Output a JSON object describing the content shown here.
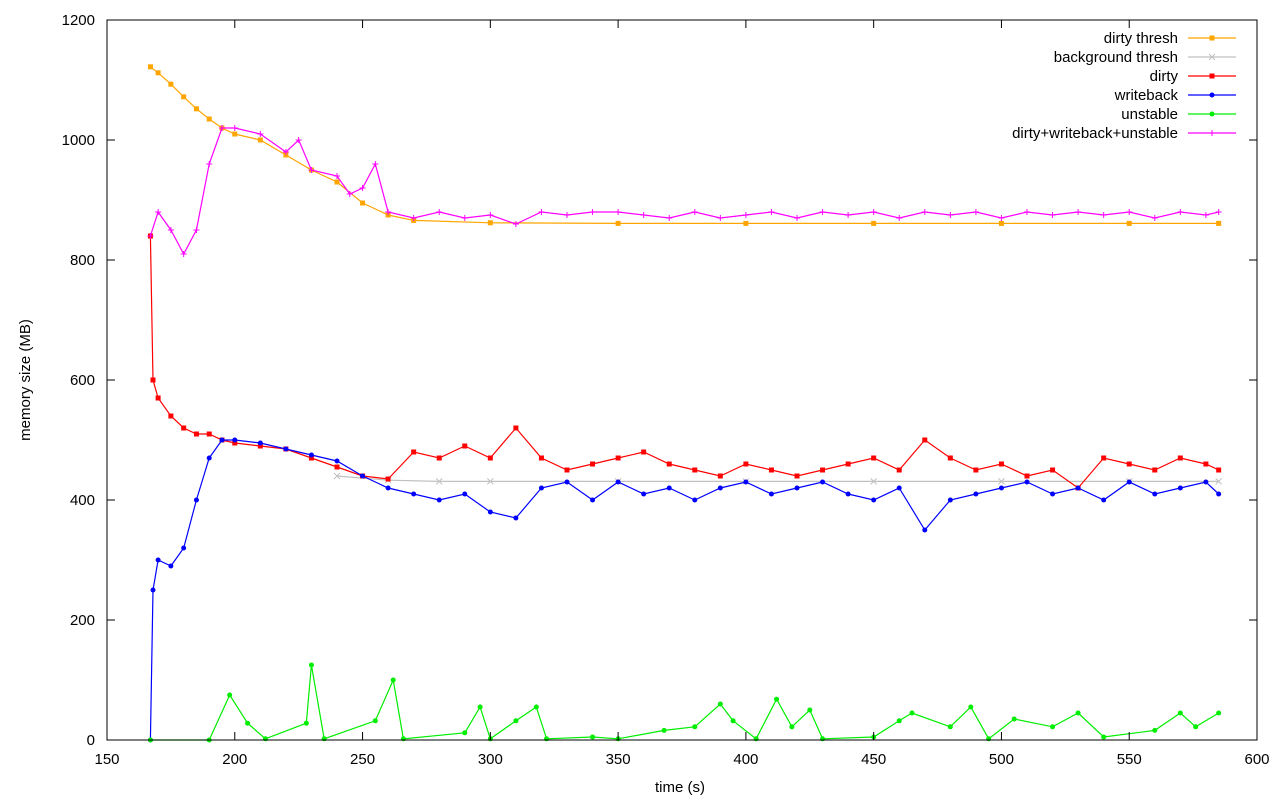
{
  "chart_data": {
    "type": "line",
    "title": "",
    "xlabel": "time (s)",
    "ylabel": "memory size (MB)",
    "xlim": [
      150,
      600
    ],
    "ylim": [
      0,
      1200
    ],
    "xticks": [
      150,
      200,
      250,
      300,
      350,
      400,
      450,
      500,
      550,
      600
    ],
    "yticks": [
      0,
      200,
      400,
      600,
      800,
      1000,
      1200
    ],
    "grid": false,
    "legend_position": "top-right",
    "series": [
      {
        "name": "dirty thresh",
        "color": "#ffa500",
        "marker": "square",
        "points": [
          [
            167,
            1122
          ],
          [
            170,
            1112
          ],
          [
            175,
            1093
          ],
          [
            180,
            1072
          ],
          [
            185,
            1052
          ],
          [
            190,
            1035
          ],
          [
            195,
            1020
          ],
          [
            200,
            1010
          ],
          [
            210,
            1000
          ],
          [
            220,
            975
          ],
          [
            230,
            950
          ],
          [
            240,
            930
          ],
          [
            250,
            895
          ],
          [
            260,
            875
          ],
          [
            270,
            866
          ],
          [
            300,
            862
          ],
          [
            350,
            861
          ],
          [
            400,
            861
          ],
          [
            450,
            861
          ],
          [
            500,
            861
          ],
          [
            550,
            861
          ],
          [
            585,
            861
          ]
        ]
      },
      {
        "name": "background thresh",
        "color": "#c0c0c0",
        "marker": "cross",
        "points": [
          [
            240,
            440
          ],
          [
            260,
            433
          ],
          [
            280,
            431
          ],
          [
            300,
            431
          ],
          [
            350,
            431
          ],
          [
            400,
            431
          ],
          [
            450,
            431
          ],
          [
            500,
            431
          ],
          [
            550,
            431
          ],
          [
            585,
            431
          ]
        ]
      },
      {
        "name": "dirty",
        "color": "#ff0000",
        "marker": "square",
        "points": [
          [
            167,
            840
          ],
          [
            168,
            600
          ],
          [
            170,
            570
          ],
          [
            175,
            540
          ],
          [
            180,
            520
          ],
          [
            185,
            510
          ],
          [
            190,
            510
          ],
          [
            195,
            500
          ],
          [
            200,
            495
          ],
          [
            210,
            490
          ],
          [
            220,
            485
          ],
          [
            230,
            470
          ],
          [
            240,
            455
          ],
          [
            250,
            440
          ],
          [
            260,
            435
          ],
          [
            270,
            480
          ],
          [
            280,
            470
          ],
          [
            290,
            490
          ],
          [
            300,
            470
          ],
          [
            310,
            520
          ],
          [
            320,
            470
          ],
          [
            330,
            450
          ],
          [
            340,
            460
          ],
          [
            350,
            470
          ],
          [
            360,
            480
          ],
          [
            370,
            460
          ],
          [
            380,
            450
          ],
          [
            390,
            440
          ],
          [
            400,
            460
          ],
          [
            410,
            450
          ],
          [
            420,
            440
          ],
          [
            430,
            450
          ],
          [
            440,
            460
          ],
          [
            450,
            470
          ],
          [
            460,
            450
          ],
          [
            470,
            500
          ],
          [
            480,
            470
          ],
          [
            490,
            450
          ],
          [
            500,
            460
          ],
          [
            510,
            440
          ],
          [
            520,
            450
          ],
          [
            530,
            420
          ],
          [
            540,
            470
          ],
          [
            550,
            460
          ],
          [
            560,
            450
          ],
          [
            570,
            470
          ],
          [
            580,
            460
          ],
          [
            585,
            450
          ]
        ]
      },
      {
        "name": "writeback",
        "color": "#0000ff",
        "marker": "circle",
        "points": [
          [
            167,
            0
          ],
          [
            168,
            250
          ],
          [
            170,
            300
          ],
          [
            175,
            290
          ],
          [
            180,
            320
          ],
          [
            185,
            400
          ],
          [
            190,
            470
          ],
          [
            195,
            500
          ],
          [
            200,
            500
          ],
          [
            210,
            495
          ],
          [
            220,
            485
          ],
          [
            230,
            475
          ],
          [
            240,
            465
          ],
          [
            250,
            440
          ],
          [
            260,
            420
          ],
          [
            270,
            410
          ],
          [
            280,
            400
          ],
          [
            290,
            410
          ],
          [
            300,
            380
          ],
          [
            310,
            370
          ],
          [
            320,
            420
          ],
          [
            330,
            430
          ],
          [
            340,
            400
          ],
          [
            350,
            430
          ],
          [
            360,
            410
          ],
          [
            370,
            420
          ],
          [
            380,
            400
          ],
          [
            390,
            420
          ],
          [
            400,
            430
          ],
          [
            410,
            410
          ],
          [
            420,
            420
          ],
          [
            430,
            430
          ],
          [
            440,
            410
          ],
          [
            450,
            400
          ],
          [
            460,
            420
          ],
          [
            470,
            350
          ],
          [
            480,
            400
          ],
          [
            490,
            410
          ],
          [
            500,
            420
          ],
          [
            510,
            430
          ],
          [
            520,
            410
          ],
          [
            530,
            420
          ],
          [
            540,
            400
          ],
          [
            550,
            430
          ],
          [
            560,
            410
          ],
          [
            570,
            420
          ],
          [
            580,
            430
          ],
          [
            585,
            410
          ]
        ]
      },
      {
        "name": "unstable",
        "color": "#00ee00",
        "marker": "circle",
        "points": [
          [
            167,
            0
          ],
          [
            190,
            0
          ],
          [
            198,
            75
          ],
          [
            205,
            28
          ],
          [
            212,
            2
          ],
          [
            228,
            28
          ],
          [
            230,
            125
          ],
          [
            235,
            2
          ],
          [
            255,
            32
          ],
          [
            262,
            100
          ],
          [
            266,
            2
          ],
          [
            290,
            12
          ],
          [
            296,
            55
          ],
          [
            300,
            2
          ],
          [
            310,
            32
          ],
          [
            318,
            55
          ],
          [
            322,
            2
          ],
          [
            340,
            5
          ],
          [
            350,
            2
          ],
          [
            368,
            16
          ],
          [
            380,
            22
          ],
          [
            390,
            60
          ],
          [
            395,
            32
          ],
          [
            404,
            2
          ],
          [
            412,
            68
          ],
          [
            418,
            22
          ],
          [
            425,
            50
          ],
          [
            430,
            2
          ],
          [
            450,
            5
          ],
          [
            460,
            32
          ],
          [
            465,
            45
          ],
          [
            480,
            22
          ],
          [
            488,
            55
          ],
          [
            495,
            2
          ],
          [
            505,
            35
          ],
          [
            520,
            22
          ],
          [
            530,
            45
          ],
          [
            540,
            5
          ],
          [
            560,
            16
          ],
          [
            570,
            45
          ],
          [
            576,
            22
          ],
          [
            585,
            45
          ]
        ]
      },
      {
        "name": "dirty+writeback+unstable",
        "color": "#ff00ff",
        "marker": "plus",
        "points": [
          [
            167,
            840
          ],
          [
            170,
            880
          ],
          [
            175,
            850
          ],
          [
            180,
            810
          ],
          [
            185,
            850
          ],
          [
            190,
            960
          ],
          [
            195,
            1020
          ],
          [
            200,
            1020
          ],
          [
            210,
            1010
          ],
          [
            220,
            980
          ],
          [
            225,
            1000
          ],
          [
            230,
            950
          ],
          [
            240,
            940
          ],
          [
            245,
            910
          ],
          [
            250,
            920
          ],
          [
            255,
            960
          ],
          [
            260,
            880
          ],
          [
            270,
            870
          ],
          [
            280,
            880
          ],
          [
            290,
            870
          ],
          [
            300,
            875
          ],
          [
            310,
            860
          ],
          [
            320,
            880
          ],
          [
            330,
            875
          ],
          [
            340,
            880
          ],
          [
            350,
            880
          ],
          [
            360,
            875
          ],
          [
            370,
            870
          ],
          [
            380,
            880
          ],
          [
            390,
            870
          ],
          [
            400,
            875
          ],
          [
            410,
            880
          ],
          [
            420,
            870
          ],
          [
            430,
            880
          ],
          [
            440,
            875
          ],
          [
            450,
            880
          ],
          [
            460,
            870
          ],
          [
            470,
            880
          ],
          [
            480,
            875
          ],
          [
            490,
            880
          ],
          [
            500,
            870
          ],
          [
            510,
            880
          ],
          [
            520,
            875
          ],
          [
            530,
            880
          ],
          [
            540,
            875
          ],
          [
            550,
            880
          ],
          [
            560,
            870
          ],
          [
            570,
            880
          ],
          [
            580,
            875
          ],
          [
            585,
            880
          ]
        ]
      }
    ]
  }
}
